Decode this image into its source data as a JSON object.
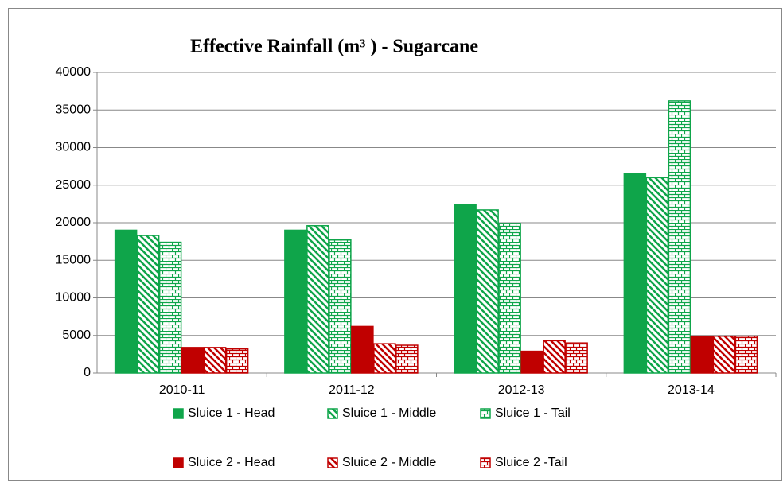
{
  "chart_data": {
    "type": "bar",
    "title": "Effective Rainfall (m³ ) - Sugarcane",
    "categories": [
      "2010-11",
      "2011-12",
      "2012-13",
      "2013-14"
    ],
    "series": [
      {
        "name": "Sluice 1 - Head",
        "color": "#0fa54a",
        "pattern": "solid",
        "values": [
          19000,
          19000,
          22400,
          26500
        ]
      },
      {
        "name": "Sluice 1 - Middle",
        "color": "#0fa54a",
        "pattern": "diagonal",
        "values": [
          18300,
          19600,
          21700,
          26000
        ]
      },
      {
        "name": "Sluice 1 - Tail",
        "color": "#0fa54a",
        "pattern": "brick",
        "values": [
          17400,
          17700,
          19900,
          36200
        ]
      },
      {
        "name": "Sluice 2 - Head",
        "color": "#c00000",
        "pattern": "solid",
        "values": [
          3400,
          6200,
          2900,
          4900
        ]
      },
      {
        "name": "Sluice 2 - Middle",
        "color": "#c00000",
        "pattern": "diagonal",
        "values": [
          3400,
          3900,
          4300,
          4900
        ]
      },
      {
        "name": "Sluice 2 -Tail",
        "color": "#c00000",
        "pattern": "brick",
        "values": [
          3200,
          3700,
          4000,
          4900
        ]
      }
    ],
    "ylim": [
      0,
      40000
    ],
    "yticks": [
      0,
      5000,
      10000,
      15000,
      20000,
      25000,
      30000,
      35000,
      40000
    ],
    "grid": true,
    "legend": "bottom"
  }
}
